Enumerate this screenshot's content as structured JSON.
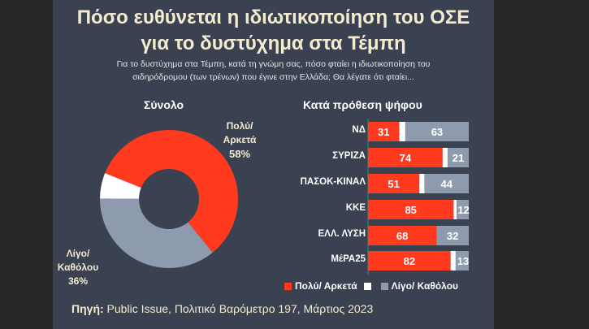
{
  "title_line1": "Πόσο ευθύνεται η ιδιωτικοποίηση του ΟΣΕ",
  "title_line2": "για το δυστύχημα στα Τέμπη",
  "subtitle_line1": "Για το δυστύχημα στα Τέμπη, κατά τη γνώμη σας, πόσο φταίει η ιδιωτικοποίηση του",
  "subtitle_line2": "σιδηρόδρομου (των τρένων) που έγινε στην Ελλάδα; Θα λέγατε ότι φταίει...",
  "source_label": "Πηγή:",
  "source_text": " Public Issue, Πολιτικό Βαρόμετρο 197, Μάρτιος 2023",
  "colors": {
    "red": "#ff3a1f",
    "gray": "#8e9aad",
    "white": "#ffffff"
  },
  "chart_data": [
    {
      "type": "pie",
      "title": "Σύνολο",
      "donut": true,
      "slices": [
        {
          "name": "Πολύ/ Αρκετά",
          "label_line1": "Πολύ/",
          "label_line2": "Αρκετά",
          "value": 58,
          "value_label": "58%"
        },
        {
          "name": "Λίγο/ Καθόλου",
          "label_line1": "Λίγο/",
          "label_line2": "Καθόλου",
          "value": 36,
          "value_label": "36%"
        },
        {
          "name": "",
          "value": 6
        }
      ]
    },
    {
      "type": "bar",
      "orientation": "horizontal",
      "stacked": true,
      "title": "Κατά πρόθεση ψήφου",
      "categories": [
        "ΝΔ",
        "ΣΥΡΙΖΑ",
        "ΠΑΣΟΚ-ΚΙΝΑΛ",
        "ΚΚΕ",
        "ΕΛΛ. ΛΥΣΗ",
        "ΜέΡΑ25"
      ],
      "series": [
        {
          "name": "Πολύ/ Αρκετά",
          "values": [
            31,
            74,
            51,
            85,
            68,
            82
          ]
        },
        {
          "name": "",
          "values": [
            6,
            5,
            5,
            3,
            0,
            5
          ]
        },
        {
          "name": "Λίγο/ Καθόλου",
          "values": [
            63,
            21,
            44,
            12,
            32,
            13
          ]
        }
      ],
      "xlim": [
        0,
        100
      ],
      "legend": "bottom"
    }
  ]
}
